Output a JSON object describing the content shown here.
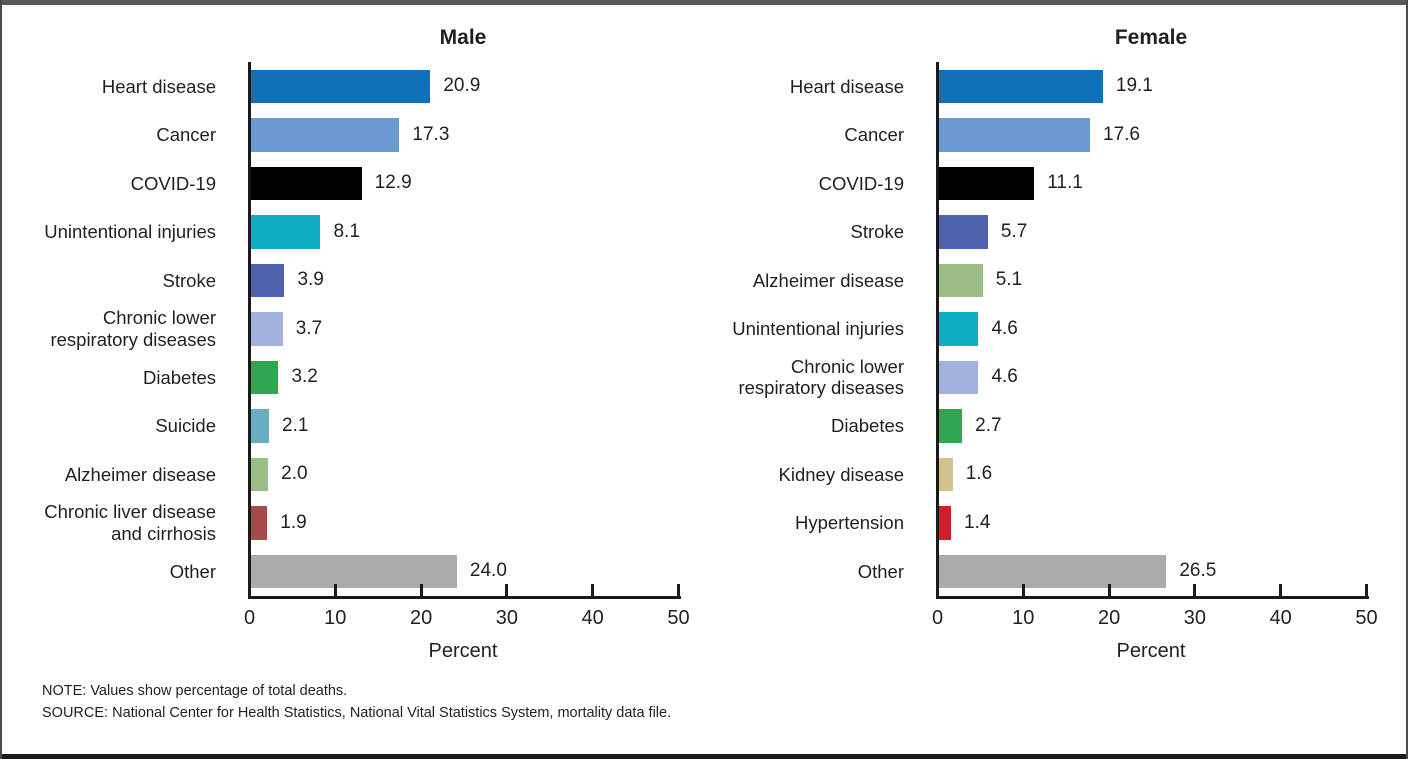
{
  "notes": {
    "note": "NOTE: Values show percentage of total deaths.",
    "source": "SOURCE: National Center for Health Statistics, National Vital Statistics System, mortality data file."
  },
  "axis_color": "#1a1a1a",
  "chart_data": [
    {
      "type": "bar",
      "orientation": "horizontal",
      "title": "Male",
      "xlabel": "Percent",
      "xlim": [
        0,
        50
      ],
      "xticks": [
        0,
        10,
        20,
        30,
        40,
        50
      ],
      "grid": false,
      "categories": [
        "Heart disease",
        "Cancer",
        "COVID-19",
        "Unintentional injuries",
        "Stroke",
        "Chronic lower respiratory diseases",
        "Diabetes",
        "Suicide",
        "Alzheimer disease",
        "Chronic liver disease and cirrhosis",
        "Other"
      ],
      "values": [
        20.9,
        17.3,
        12.9,
        8.1,
        3.9,
        3.7,
        3.2,
        2.1,
        2.0,
        1.9,
        24.0
      ],
      "bars": [
        {
          "label": "Heart disease",
          "value_label": "20.9",
          "color": "#0f70b8"
        },
        {
          "label": "Cancer",
          "value_label": "17.3",
          "color": "#6b9bd2"
        },
        {
          "label": "COVID-19",
          "value_label": "12.9",
          "color": "#000000"
        },
        {
          "label": "Unintentional injuries",
          "value_label": "8.1",
          "color": "#10aec4"
        },
        {
          "label": "Stroke",
          "value_label": "3.9",
          "color": "#4f63af"
        },
        {
          "label": "Chronic lower\nrespiratory diseases",
          "value_label": "3.7",
          "color": "#a3b2dd"
        },
        {
          "label": "Diabetes",
          "value_label": "3.2",
          "color": "#2ea750"
        },
        {
          "label": "Suicide",
          "value_label": "2.1",
          "color": "#68adc3"
        },
        {
          "label": "Alzheimer disease",
          "value_label": "2.0",
          "color": "#9bbe85"
        },
        {
          "label": "Chronic liver disease\nand cirrhosis",
          "value_label": "1.9",
          "color": "#a9494c"
        },
        {
          "label": "Other",
          "value_label": "24.0",
          "color": "#ababab"
        }
      ]
    },
    {
      "type": "bar",
      "orientation": "horizontal",
      "title": "Female",
      "xlabel": "Percent",
      "xlim": [
        0,
        50
      ],
      "xticks": [
        0,
        10,
        20,
        30,
        40,
        50
      ],
      "grid": false,
      "categories": [
        "Heart disease",
        "Cancer",
        "COVID-19",
        "Stroke",
        "Alzheimer disease",
        "Unintentional injuries",
        "Chronic lower respiratory diseases",
        "Diabetes",
        "Kidney disease",
        "Hypertension",
        "Other"
      ],
      "values": [
        19.1,
        17.6,
        11.1,
        5.7,
        5.1,
        4.6,
        4.6,
        2.7,
        1.6,
        1.4,
        26.5
      ],
      "bars": [
        {
          "label": "Heart disease",
          "value_label": "19.1",
          "color": "#0f70b8"
        },
        {
          "label": "Cancer",
          "value_label": "17.6",
          "color": "#6b9bd2"
        },
        {
          "label": "COVID-19",
          "value_label": "11.1",
          "color": "#000000"
        },
        {
          "label": "Stroke",
          "value_label": "5.7",
          "color": "#4f63af"
        },
        {
          "label": "Alzheimer disease",
          "value_label": "5.1",
          "color": "#9bbe85"
        },
        {
          "label": "Unintentional injuries",
          "value_label": "4.6",
          "color": "#10aec4"
        },
        {
          "label": "Chronic lower\nrespiratory diseases",
          "value_label": "4.6",
          "color": "#a3b2dd"
        },
        {
          "label": "Diabetes",
          "value_label": "2.7",
          "color": "#2ea750"
        },
        {
          "label": "Kidney disease",
          "value_label": "1.6",
          "color": "#d2c38f"
        },
        {
          "label": "Hypertension",
          "value_label": "1.4",
          "color": "#d01f2b"
        },
        {
          "label": "Other",
          "value_label": "26.5",
          "color": "#ababab"
        }
      ]
    }
  ]
}
